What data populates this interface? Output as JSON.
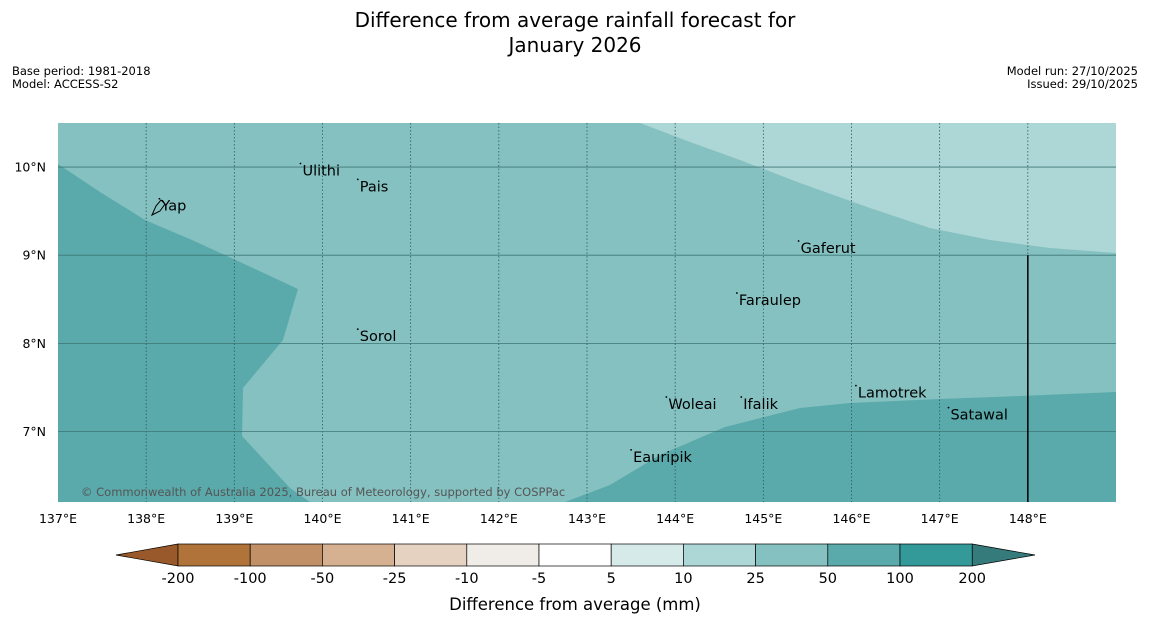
{
  "header": {
    "title_line1": "Difference from average rainfall forecast for",
    "title_line2": "January 2026",
    "base_period": "Base period: 1981-2018",
    "model": "Model: ACCESS-S2",
    "model_run": "Model run: 27/10/2025",
    "issued": "Issued: 29/10/2025"
  },
  "map": {
    "credit": "© Commonwealth of Australia 2025, Bureau of Meteorology, supported by COSPPac",
    "lon_range": [
      137,
      149
    ],
    "lat_range": [
      6.2,
      10.5
    ],
    "lon_ticks": [
      "137°E",
      "138°E",
      "139°E",
      "140°E",
      "141°E",
      "142°E",
      "143°E",
      "144°E",
      "145°E",
      "146°E",
      "147°E",
      "148°E"
    ],
    "lat_ticks": [
      "10°N",
      "9°N",
      "8°N",
      "7°N"
    ],
    "places": [
      {
        "name": "Ulithi",
        "lon": 139.75,
        "lat": 9.95
      },
      {
        "name": "Pais",
        "lon": 140.4,
        "lat": 9.77
      },
      {
        "name": "Yap",
        "lon": 138.15,
        "lat": 9.55
      },
      {
        "name": "Gaferut",
        "lon": 145.4,
        "lat": 9.07
      },
      {
        "name": "Faraulep",
        "lon": 144.7,
        "lat": 8.48
      },
      {
        "name": "Sorol",
        "lon": 140.4,
        "lat": 8.07
      },
      {
        "name": "Lamotrek",
        "lon": 146.05,
        "lat": 7.43
      },
      {
        "name": "Woleai",
        "lon": 143.9,
        "lat": 7.3
      },
      {
        "name": "Ifalik",
        "lon": 144.75,
        "lat": 7.3
      },
      {
        "name": "Satawal",
        "lon": 147.1,
        "lat": 7.18
      },
      {
        "name": "Eauripik",
        "lon": 143.5,
        "lat": 6.7
      }
    ],
    "boundary_line": {
      "lon": 148.0,
      "lat_from": 6.2,
      "lat_to": 9.0
    },
    "category_colors": {
      "10-25": "#add6d6",
      "25-50": "#85c1c0",
      "50-100": "#5aaaab"
    }
  },
  "legend": {
    "title": "Difference from average (mm)",
    "labels": [
      "-200",
      "-100",
      "-50",
      "-25",
      "-10",
      "-5",
      "5",
      "10",
      "25",
      "50",
      "100",
      "200"
    ],
    "colors": [
      "#b07339",
      "#c19066",
      "#d5b191",
      "#e6d2c1",
      "#f0ede8",
      "#ffffff",
      "#d6eae9",
      "#add6d6",
      "#85c1c0",
      "#5aaaab",
      "#349a99"
    ],
    "low_extend_color": "#99592a",
    "high_extend_color": "#367b7b"
  }
}
